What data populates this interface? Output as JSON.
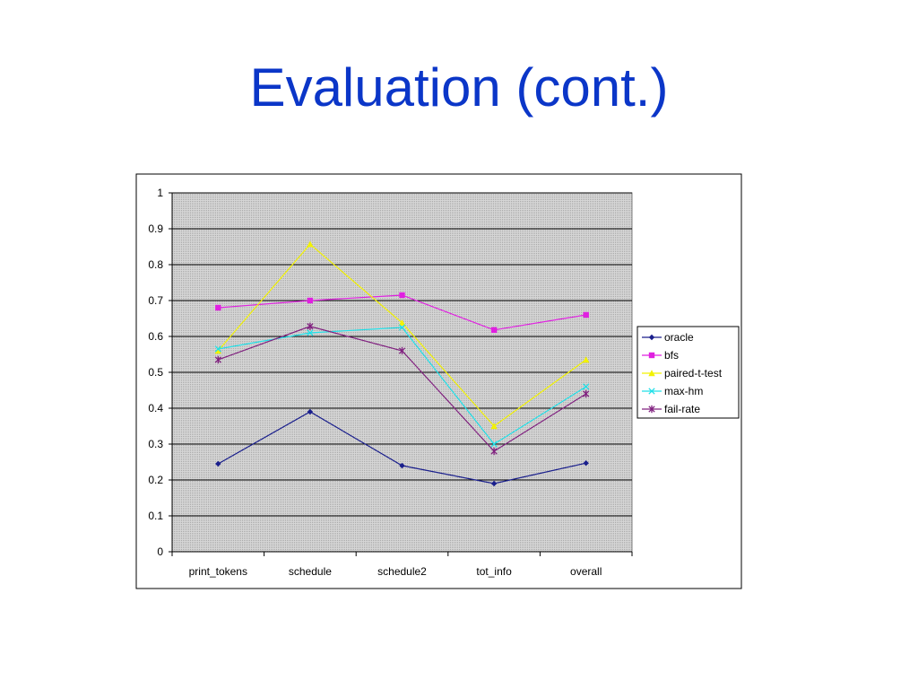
{
  "slide": {
    "title": "Evaluation (cont.)"
  },
  "colors": {
    "title": "#0b36c8",
    "plot_bg": "#c0c0c0",
    "gridline": "#000000"
  },
  "chart_data": {
    "type": "line",
    "title": "",
    "xlabel": "",
    "ylabel": "",
    "categories": [
      "print_tokens",
      "schedule",
      "schedule2",
      "tot_info",
      "overall"
    ],
    "ylim": [
      0,
      1
    ],
    "yticks": [
      "0",
      "0.1",
      "0.2",
      "0.3",
      "0.4",
      "0.5",
      "0.6",
      "0.7",
      "0.8",
      "0.9",
      "1"
    ],
    "grid": true,
    "legend_position": "right",
    "series": [
      {
        "name": "oracle",
        "color": "#1a1f8c",
        "marker": "diamond",
        "values": [
          0.245,
          0.39,
          0.24,
          0.19,
          0.247
        ]
      },
      {
        "name": "bfs",
        "color": "#e020e0",
        "marker": "square",
        "values": [
          0.68,
          0.7,
          0.715,
          0.618,
          0.66
        ]
      },
      {
        "name": "paired-t-test",
        "color": "#f2f200",
        "marker": "triangle",
        "values": [
          0.56,
          0.857,
          0.638,
          0.35,
          0.535
        ]
      },
      {
        "name": "max-hm",
        "color": "#20e0e8",
        "marker": "x",
        "values": [
          0.565,
          0.61,
          0.625,
          0.3,
          0.46
        ]
      },
      {
        "name": "fail-rate",
        "color": "#80207f",
        "marker": "star",
        "values": [
          0.535,
          0.628,
          0.56,
          0.28,
          0.44
        ]
      }
    ]
  }
}
